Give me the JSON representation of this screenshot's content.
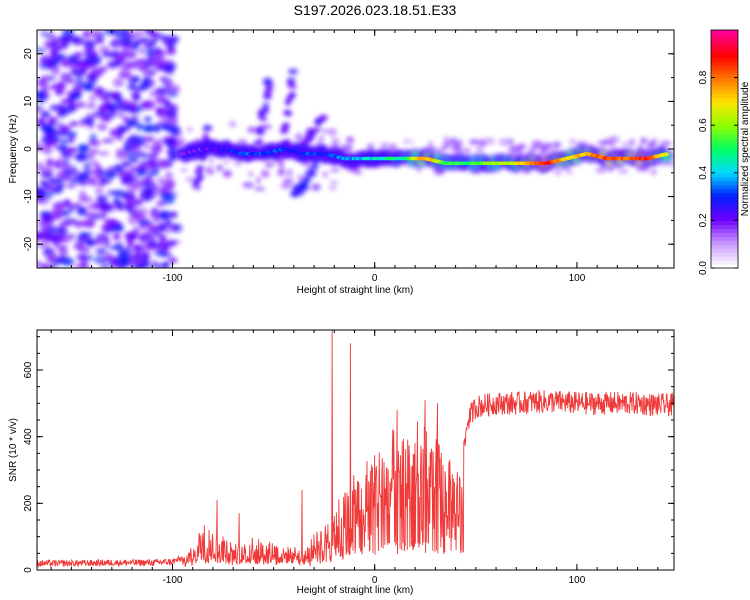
{
  "figure_title": "S197.2026.023.18.51.E33",
  "colors": {
    "snr_line": "#f03a3a",
    "axis": "#000000",
    "background": "#ffffff"
  },
  "chart_data": [
    {
      "type": "heatmap",
      "title": "S197.2026.023.18.51.E33",
      "xlabel": "Height of straight line (km)",
      "ylabel": "Frequency (Hz)",
      "xlim": [
        -167,
        148
      ],
      "ylim": [
        -25,
        25
      ],
      "x_ticks": [
        -100,
        0,
        100
      ],
      "x_tick_labels": [
        "-100",
        "0",
        "100"
      ],
      "y_ticks": [
        -20,
        -10,
        0,
        10,
        20
      ],
      "y_tick_labels": [
        "-20",
        "-10",
        "0",
        "10",
        "20"
      ],
      "colorbar": {
        "label": "Normalized spectral amplitude",
        "range": [
          0,
          1
        ],
        "ticks": [
          0,
          0.2,
          0.4,
          0.6,
          0.8
        ],
        "tick_labels": [
          "0.0",
          "0.2",
          "0.4",
          "0.6",
          "0.8"
        ]
      },
      "noise_region": {
        "x_range": [
          -167,
          -98
        ],
        "y_range": [
          -25,
          25
        ],
        "level": 0.1
      },
      "ridge": [
        {
          "x": -95,
          "y": -1,
          "a": 0.2
        },
        {
          "x": -85,
          "y": 0,
          "a": 0.2
        },
        {
          "x": -75,
          "y": 0,
          "a": 0.25
        },
        {
          "x": -65,
          "y": -1,
          "a": 0.3
        },
        {
          "x": -55,
          "y": -1,
          "a": 0.3
        },
        {
          "x": -45,
          "y": 0,
          "a": 0.3
        },
        {
          "x": -35,
          "y": -1,
          "a": 0.3
        },
        {
          "x": -25,
          "y": -1,
          "a": 0.3
        },
        {
          "x": -15,
          "y": -2,
          "a": 0.35
        },
        {
          "x": -5,
          "y": -2,
          "a": 0.4
        },
        {
          "x": 5,
          "y": -2,
          "a": 0.45
        },
        {
          "x": 15,
          "y": -2,
          "a": 0.5
        },
        {
          "x": 25,
          "y": -2,
          "a": 0.8
        },
        {
          "x": 35,
          "y": -3,
          "a": 0.55
        },
        {
          "x": 45,
          "y": -3,
          "a": 0.5
        },
        {
          "x": 55,
          "y": -3,
          "a": 0.6
        },
        {
          "x": 65,
          "y": -3,
          "a": 0.6
        },
        {
          "x": 75,
          "y": -3,
          "a": 0.75
        },
        {
          "x": 85,
          "y": -3,
          "a": 0.9
        },
        {
          "x": 95,
          "y": -2,
          "a": 0.7
        },
        {
          "x": 105,
          "y": -1,
          "a": 0.75
        },
        {
          "x": 115,
          "y": -2,
          "a": 0.85
        },
        {
          "x": 125,
          "y": -2,
          "a": 0.8
        },
        {
          "x": 135,
          "y": -2,
          "a": 0.9
        },
        {
          "x": 145,
          "y": -1,
          "a": 0.6
        }
      ],
      "streaks": [
        {
          "x0": -58,
          "y0": 1,
          "x1": -52,
          "y1": 14,
          "a": 0.2
        },
        {
          "x0": -45,
          "y0": 0,
          "x1": -40,
          "y1": 16,
          "a": 0.2
        },
        {
          "x0": -38,
          "y0": -2,
          "x1": -26,
          "y1": 7,
          "a": 0.2
        },
        {
          "x0": -40,
          "y0": -10,
          "x1": -28,
          "y1": -3,
          "a": 0.25
        },
        {
          "x0": -88,
          "y0": -8,
          "x1": -82,
          "y1": 5,
          "a": 0.2
        }
      ]
    },
    {
      "type": "line",
      "title": "",
      "xlabel": "Height of straight line (km)",
      "ylabel": "SNR (10 * v/v)",
      "xlim": [
        -167,
        148
      ],
      "ylim": [
        0,
        720
      ],
      "x_ticks": [
        -100,
        0,
        100
      ],
      "x_tick_labels": [
        "-100",
        "0",
        "100"
      ],
      "y_ticks": [
        0,
        200,
        400,
        600
      ],
      "y_tick_labels": [
        "0",
        "200",
        "400",
        "600"
      ],
      "series": [
        {
          "name": "SNR",
          "x": [
            -167,
            -150,
            -130,
            -110,
            -100,
            -95,
            -90,
            -85,
            -80,
            -75,
            -70,
            -65,
            -60,
            -55,
            -50,
            -45,
            -40,
            -35,
            -30,
            -25,
            -20,
            -15,
            -10,
            -5,
            0,
            5,
            10,
            15,
            20,
            25,
            30,
            35,
            40,
            43,
            46,
            50,
            55,
            60,
            70,
            80,
            90,
            100,
            110,
            120,
            130,
            140,
            148
          ],
          "y": [
            20,
            20,
            22,
            22,
            25,
            35,
            60,
            120,
            100,
            95,
            70,
            60,
            90,
            70,
            75,
            55,
            65,
            50,
            90,
            120,
            170,
            200,
            240,
            280,
            300,
            340,
            360,
            370,
            380,
            360,
            340,
            290,
            260,
            300,
            450,
            490,
            495,
            500,
            500,
            505,
            505,
            500,
            500,
            500,
            500,
            495,
            495
          ],
          "peaks": [
            {
              "x": -78,
              "y": 210
            },
            {
              "x": -67,
              "y": 170
            },
            {
              "x": -36,
              "y": 240
            },
            {
              "x": -21,
              "y": 720
            },
            {
              "x": -12,
              "y": 680
            },
            {
              "x": 11,
              "y": 480
            },
            {
              "x": 25,
              "y": 510
            },
            {
              "x": 31,
              "y": 500
            }
          ]
        }
      ]
    }
  ]
}
